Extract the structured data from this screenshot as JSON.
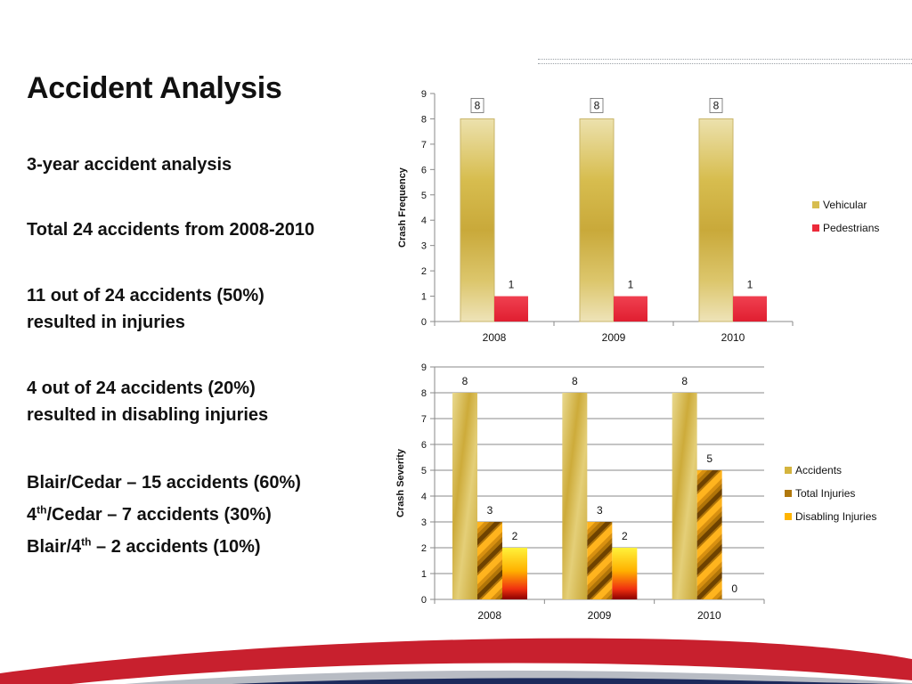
{
  "slide": {
    "title": "Accident Analysis",
    "bullets": {
      "b1": "3-year accident analysis",
      "b2": "Total 24 accidents from 2008-2010",
      "b3_l1": "11 out of 24 accidents (50%)",
      "b3_l2": "resulted in injuries",
      "b4_l1": "4 out of 24 accidents (20%)",
      "b4_l2": "resulted in disabling injuries",
      "b5": "Blair/Cedar – 15 accidents (60%)",
      "b6_pre": "4",
      "b6_sup": "th",
      "b6_post": "/Cedar – 7 accidents (30%)",
      "b7_pre": "Blair/4",
      "b7_sup": "th",
      "b7_post": " – 2 accidents (10%)"
    }
  },
  "colors": {
    "vehicular": "#d7bd4f",
    "pedestrians": "#ec2a3a",
    "accidents": "#d4b43e",
    "total_injuries": "#b0780c",
    "disabling_injuries": "#ffb400",
    "grid": "#8a8a8a",
    "swoosh_red": "#c8202e",
    "swoosh_navy": "#1d2b5c"
  },
  "chart_data": [
    {
      "type": "bar",
      "categories": [
        "2008",
        "2009",
        "2010"
      ],
      "series": [
        {
          "name": "Vehicular",
          "values": [
            8,
            8,
            8
          ]
        },
        {
          "name": "Pedestrians",
          "values": [
            1,
            1,
            1
          ]
        }
      ],
      "ylabel": "Crash Frequency",
      "xlabel": "",
      "ylim": [
        0,
        9
      ],
      "yticks": [
        "0",
        "1",
        "2",
        "3",
        "4",
        "5",
        "6",
        "7",
        "8",
        "9"
      ],
      "grid": false,
      "legend": "right",
      "data_labels": true
    },
    {
      "type": "bar",
      "categories": [
        "2008",
        "2009",
        "2010"
      ],
      "series": [
        {
          "name": "Accidents",
          "values": [
            8,
            8,
            8
          ]
        },
        {
          "name": "Total Injuries",
          "values": [
            3,
            3,
            5
          ]
        },
        {
          "name": "Disabling Injuries",
          "values": [
            2,
            2,
            0
          ]
        }
      ],
      "ylabel": "Crash Severity",
      "xlabel": "",
      "ylim": [
        0,
        9
      ],
      "yticks": [
        "0",
        "1",
        "2",
        "3",
        "4",
        "5",
        "6",
        "7",
        "8",
        "9"
      ],
      "grid": true,
      "legend": "right",
      "data_labels": true
    }
  ]
}
